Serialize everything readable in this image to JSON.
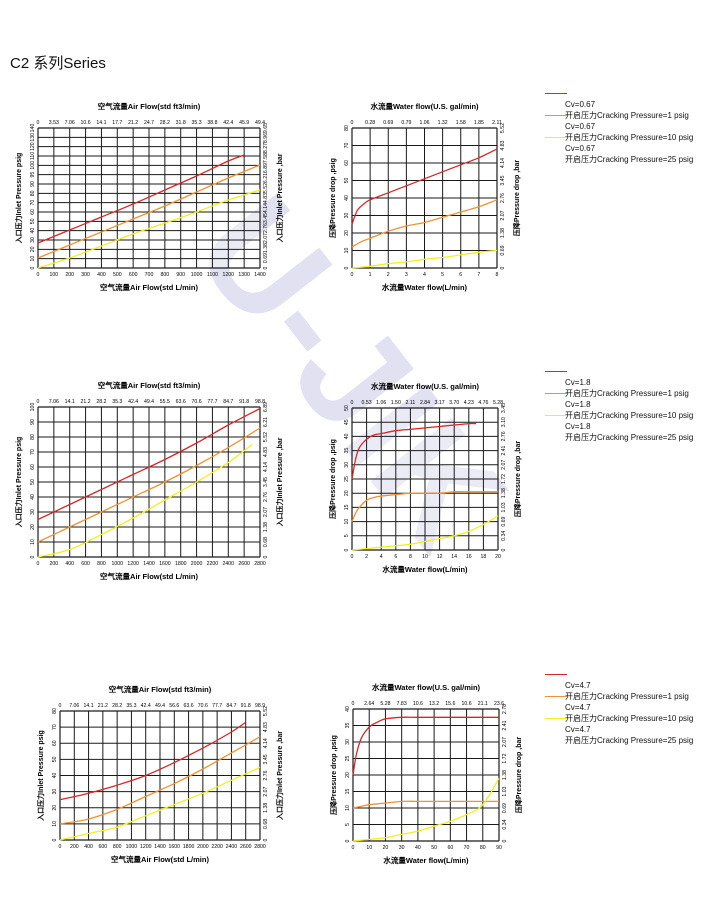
{
  "page_title": "C2 系列Series",
  "watermark_text": "U-JIK",
  "colors": {
    "crack1": "#d72727",
    "crack10": "#f0922e",
    "crack25": "#f2ef1f",
    "grid": "#1a1a1a",
    "watermark": "#c9c9e6"
  },
  "legends": [
    {
      "entries": [
        {
          "cv": "Cv=0.67",
          "label": "开启压力Cracking Pressure=1 psig",
          "color": "#d72727"
        },
        {
          "cv": "Cv=0.67",
          "label": "开启压力Cracking Pressure=10 psig",
          "color": "#f0922e"
        },
        {
          "cv": "Cv=0.67",
          "label": "开启压力Cracking Pressure=25 psig",
          "color": "#f2ef1f"
        }
      ]
    },
    {
      "entries": [
        {
          "cv": "Cv=1.8",
          "label": "开启压力Cracking Pressure=1 psig",
          "color": "#d72727"
        },
        {
          "cv": "Cv=1.8",
          "label": "开启压力Cracking Pressure=10 psig",
          "color": "#f0922e"
        },
        {
          "cv": "Cv=1.8",
          "label": "开启压力Cracking Pressure=25 psig",
          "color": "#f2ef1f"
        }
      ]
    },
    {
      "entries": [
        {
          "cv": "Cv=4.7",
          "label": "开启压力Cracking Pressure=1 psig",
          "color": "#d72727"
        },
        {
          "cv": "Cv=4.7",
          "label": "开启压力Cracking Pressure=10 psig",
          "color": "#f0922e"
        },
        {
          "cv": "Cv=4.7",
          "label": "开启压力Cracking Pressure=25 psig",
          "color": "#f2ef1f"
        }
      ]
    }
  ],
  "chart_data": [
    {
      "type": "line",
      "title": "空气流量Air Flow(std ft3/min)",
      "xlabel": "空气流量Air Flow(std L/min)",
      "ylabel": "入口压力Inlet Pressure psig",
      "y2label": "入口压力Inlet Pressure ,bar",
      "xlim": [
        0,
        1400
      ],
      "ylim": [
        0,
        140
      ],
      "grid": true,
      "x_ticks": [
        "0",
        "100",
        "200",
        "300",
        "400",
        "500",
        "600",
        "700",
        "800",
        "900",
        "1000",
        "1100",
        "1200",
        "1300",
        "1400"
      ],
      "y_ticks": [
        "0",
        "10",
        "20",
        "30",
        "40",
        "50",
        "60",
        "70",
        "80",
        "90",
        "95",
        "100",
        "110",
        "120",
        "130",
        "140"
      ],
      "x2_ticks": [
        "0",
        "3.53",
        "7.06",
        "10.6",
        "14.1",
        "17.7",
        "21.2",
        "24.7",
        "28.2",
        "31.8",
        "35.3",
        "38.8",
        "42.4",
        "45.9",
        "49.4"
      ],
      "y2_ticks": [
        "0",
        "0.69",
        "1.38",
        "2.07",
        "2.76",
        "3.45",
        "4.14",
        "4.83",
        "5.52",
        "6.21",
        "6.89",
        "7.58",
        "8.27",
        "8.96",
        "9.65"
      ],
      "series": [
        {
          "color": "#d72727",
          "x": [
            0,
            200,
            400,
            600,
            800,
            1000,
            1200,
            1300
          ],
          "y": [
            25,
            38,
            51,
            64,
            78,
            92,
            107,
            113
          ]
        },
        {
          "color": "#f0922e",
          "x": [
            0,
            200,
            400,
            600,
            800,
            1000,
            1200,
            1400
          ],
          "y": [
            10,
            23,
            36,
            49,
            62,
            76,
            90,
            103
          ]
        },
        {
          "color": "#f2ef1f",
          "x": [
            0,
            200,
            400,
            600,
            800,
            1000,
            1200,
            1400
          ],
          "y": [
            0,
            10,
            22,
            34,
            45,
            56,
            68,
            78
          ]
        }
      ]
    },
    {
      "type": "line",
      "title": "水流量Water flow(U.S. gal/min)",
      "xlabel": "水流量Water flow(L/min)",
      "ylabel": "压降Pressure drop ,psig",
      "y2label": "压降Pressure drop ,bar",
      "xlim": [
        0,
        8
      ],
      "ylim": [
        0,
        80
      ],
      "grid": true,
      "x_ticks": [
        "0",
        "1",
        "2",
        "3",
        "4",
        "5",
        "6",
        "7",
        "8"
      ],
      "y_ticks": [
        "0",
        "10",
        "20",
        "30",
        "40",
        "50",
        "60",
        "70",
        "80"
      ],
      "x2_ticks": [
        "0",
        "0.28",
        "0.69",
        "0.79",
        "1.06",
        "1.32",
        "1.58",
        "1.85",
        "2.11"
      ],
      "y2_ticks": [
        "0",
        "0.69",
        "1.38",
        "2.07",
        "2.76",
        "3.45",
        "4.14",
        "4.83",
        "5.52"
      ],
      "series": [
        {
          "color": "#d72727",
          "x": [
            0,
            0.3,
            0.7,
            1,
            2,
            3,
            4,
            5,
            6,
            7,
            8
          ],
          "y": [
            25,
            33,
            37,
            39,
            43,
            47,
            51,
            55,
            59,
            63,
            68
          ]
        },
        {
          "color": "#f0922e",
          "x": [
            0,
            0.5,
            1,
            2,
            3,
            4,
            5,
            6,
            7,
            8
          ],
          "y": [
            12,
            15,
            17,
            21,
            24,
            26,
            29,
            32,
            35,
            39
          ]
        },
        {
          "color": "#f2ef1f",
          "x": [
            0,
            1,
            2,
            3,
            4,
            5,
            6,
            7,
            8
          ],
          "y": [
            0,
            1,
            2.5,
            3.5,
            5,
            6,
            7.5,
            9,
            10
          ]
        }
      ]
    },
    {
      "type": "line",
      "title": "空气流量Air Flow(std ft3/min)",
      "xlabel": "空气流量Air Flow(std L/min)",
      "ylabel": "入口压力Inlet Pressure psig",
      "y2label": "入口压力Inlet Pressure ,bar",
      "xlim": [
        0,
        2800
      ],
      "ylim": [
        0,
        100
      ],
      "grid": true,
      "x_ticks": [
        "0",
        "200",
        "400",
        "600",
        "800",
        "1000",
        "1200",
        "1400",
        "1600",
        "1800",
        "2000",
        "2200",
        "2400",
        "2600",
        "2800"
      ],
      "y_ticks": [
        "0",
        "10",
        "20",
        "30",
        "40",
        "50",
        "60",
        "70",
        "80",
        "90",
        "100"
      ],
      "x2_ticks": [
        "0",
        "7.06",
        "14.1",
        "21.2",
        "28.2",
        "35.3",
        "42.4",
        "49.4",
        "55.5",
        "63.6",
        "70.6",
        "77.7",
        "84.7",
        "91.8",
        "98.8"
      ],
      "y2_ticks": [
        "0",
        "0.68",
        "1.38",
        "2.07",
        "2.76",
        "3.45",
        "4.14",
        "4.83",
        "5.52",
        "6.21",
        "6.89"
      ],
      "series": [
        {
          "color": "#d72727",
          "x": [
            0,
            400,
            800,
            1200,
            1600,
            2000,
            2400,
            2800
          ],
          "y": [
            25,
            35,
            45,
            55,
            65,
            76,
            88,
            99
          ]
        },
        {
          "color": "#f0922e",
          "x": [
            0,
            400,
            800,
            1200,
            1600,
            2000,
            2400,
            2800
          ],
          "y": [
            10,
            20,
            30,
            40,
            50,
            61,
            73,
            86
          ]
        },
        {
          "color": "#f2ef1f",
          "x": [
            0,
            400,
            800,
            1200,
            1600,
            2000,
            2400,
            2700
          ],
          "y": [
            0,
            5,
            15,
            26,
            38,
            50,
            63,
            75
          ]
        }
      ]
    },
    {
      "type": "line",
      "title": "水流量Water flow(U.S. gal/min)",
      "xlabel": "水流量Water flow(L/min)",
      "ylabel": "压降Pressure drop ,psig",
      "y2label": "压降Pressure drop ,bar",
      "xlim": [
        0,
        20
      ],
      "ylim": [
        0,
        50
      ],
      "grid": true,
      "x_ticks": [
        "0",
        "2",
        "4",
        "6",
        "8",
        "10",
        "12",
        "14",
        "16",
        "18",
        "20"
      ],
      "y_ticks": [
        "0",
        "5",
        "10",
        "15",
        "20",
        "25",
        "30",
        "35",
        "40",
        "45",
        "50"
      ],
      "x2_ticks": [
        "0",
        "0.53",
        "1.06",
        "1.50",
        "2.11",
        "2.84",
        "3.17",
        "3.70",
        "4.23",
        "4.76",
        "5.28"
      ],
      "y2_ticks": [
        "0",
        "0.34",
        "0.69",
        "1.03",
        "1.38",
        "1.72",
        "2.07",
        "2.41",
        "2.76",
        "3.10",
        "3.45"
      ],
      "series": [
        {
          "color": "#d72727",
          "x": [
            0,
            0.5,
            1,
            2,
            3,
            4,
            6,
            8,
            10,
            12,
            14,
            16,
            17
          ],
          "y": [
            25,
            32,
            36,
            39,
            40.5,
            41,
            42,
            42.5,
            43,
            43.5,
            44,
            44.5,
            44.5
          ]
        },
        {
          "color": "#f0922e",
          "x": [
            0,
            0.5,
            1,
            2,
            3,
            4,
            6,
            8,
            10,
            12,
            14,
            16,
            18,
            20
          ],
          "y": [
            10,
            13,
            15,
            17.5,
            18.5,
            19,
            19.5,
            20,
            20,
            20,
            20.5,
            20.5,
            20.5,
            20.5
          ]
        },
        {
          "color": "#f2ef1f",
          "x": [
            0,
            2,
            4,
            6,
            8,
            10,
            12,
            14,
            16,
            18,
            20
          ],
          "y": [
            0,
            0.5,
            1,
            1.5,
            2,
            3,
            4,
            5,
            6.5,
            9,
            12
          ]
        }
      ]
    },
    {
      "type": "line",
      "title": "空气流量Air Flow(std ft3/min)",
      "xlabel": "空气流量Air Flow(std L/min)",
      "ylabel": "入口压力Inlet Pressure psig",
      "y2label": "入口压力Inlet Pressure ,bar",
      "xlim": [
        0,
        2800
      ],
      "ylim": [
        0,
        80
      ],
      "grid": true,
      "x_ticks": [
        "0",
        "200",
        "400",
        "600",
        "800",
        "1000",
        "1200",
        "1400",
        "1600",
        "1800",
        "2000",
        "2200",
        "2400",
        "2600",
        "2800"
      ],
      "y_ticks": [
        "0",
        "10",
        "20",
        "30",
        "40",
        "50",
        "60",
        "70",
        "80"
      ],
      "x2_ticks": [
        "0",
        "7.06",
        "14.1",
        "21.2",
        "28.2",
        "35.3",
        "42.4",
        "49.4",
        "56.6",
        "63.6",
        "70.6",
        "77.7",
        "84.7",
        "91.8",
        "98.9"
      ],
      "y2_ticks": [
        "0",
        "0.68",
        "1.38",
        "2.07",
        "2.76",
        "3.45",
        "4.14",
        "4.83",
        "5.52"
      ],
      "series": [
        {
          "color": "#d72727",
          "x": [
            0,
            400,
            800,
            1200,
            1600,
            2000,
            2400,
            2600
          ],
          "y": [
            25,
            29,
            34,
            40,
            48,
            57,
            67,
            73
          ]
        },
        {
          "color": "#f0922e",
          "x": [
            0,
            400,
            800,
            1200,
            1600,
            2000,
            2400,
            2800
          ],
          "y": [
            10,
            13,
            19,
            27,
            35,
            44,
            54,
            64
          ]
        },
        {
          "color": "#f2ef1f",
          "x": [
            0,
            400,
            800,
            1200,
            1600,
            2000,
            2400,
            2800
          ],
          "y": [
            0,
            4,
            8,
            15,
            22,
            29,
            37,
            45
          ]
        }
      ]
    },
    {
      "type": "line",
      "title": "水流量Water flow(U.S. gal/min)",
      "xlabel": "水流量Water flow(L/min)",
      "ylabel": "压降Pressure drop ,psig",
      "y2label": "压降Pressure drop ,bar",
      "xlim": [
        0,
        90
      ],
      "ylim": [
        0,
        40
      ],
      "grid": true,
      "x_ticks": [
        "0",
        "10",
        "20",
        "30",
        "40",
        "50",
        "60",
        "70",
        "80",
        "90"
      ],
      "y_ticks": [
        "0",
        "5",
        "10",
        "15",
        "20",
        "25",
        "30",
        "35",
        "40"
      ],
      "x2_ticks": [
        "0",
        "2.64",
        "5.28",
        "7.83",
        "10.6",
        "13.2",
        "15.6",
        "10.6",
        "21.1",
        "23.6"
      ],
      "y2_ticks": [
        "0",
        "0.34",
        "0.69",
        "1.03",
        "1.38",
        "1.72",
        "2.07",
        "2.41",
        "2.78"
      ],
      "series": [
        {
          "color": "#d72727",
          "x": [
            0,
            2,
            5,
            10,
            15,
            20,
            30,
            40,
            60,
            90
          ],
          "y": [
            20,
            26,
            31,
            34.5,
            36,
            37,
            37.5,
            37.5,
            37.5,
            37.5
          ]
        },
        {
          "color": "#f0922e",
          "x": [
            0,
            5,
            10,
            20,
            30,
            40,
            50,
            60,
            70,
            90
          ],
          "y": [
            10,
            10.5,
            11,
            11.5,
            12,
            12,
            12,
            12,
            12,
            12
          ]
        },
        {
          "color": "#f2ef1f",
          "x": [
            0,
            10,
            20,
            30,
            40,
            50,
            60,
            70,
            80,
            90
          ],
          "y": [
            0,
            0.5,
            1,
            2,
            3,
            4.5,
            6,
            8,
            11,
            19
          ]
        }
      ]
    }
  ]
}
